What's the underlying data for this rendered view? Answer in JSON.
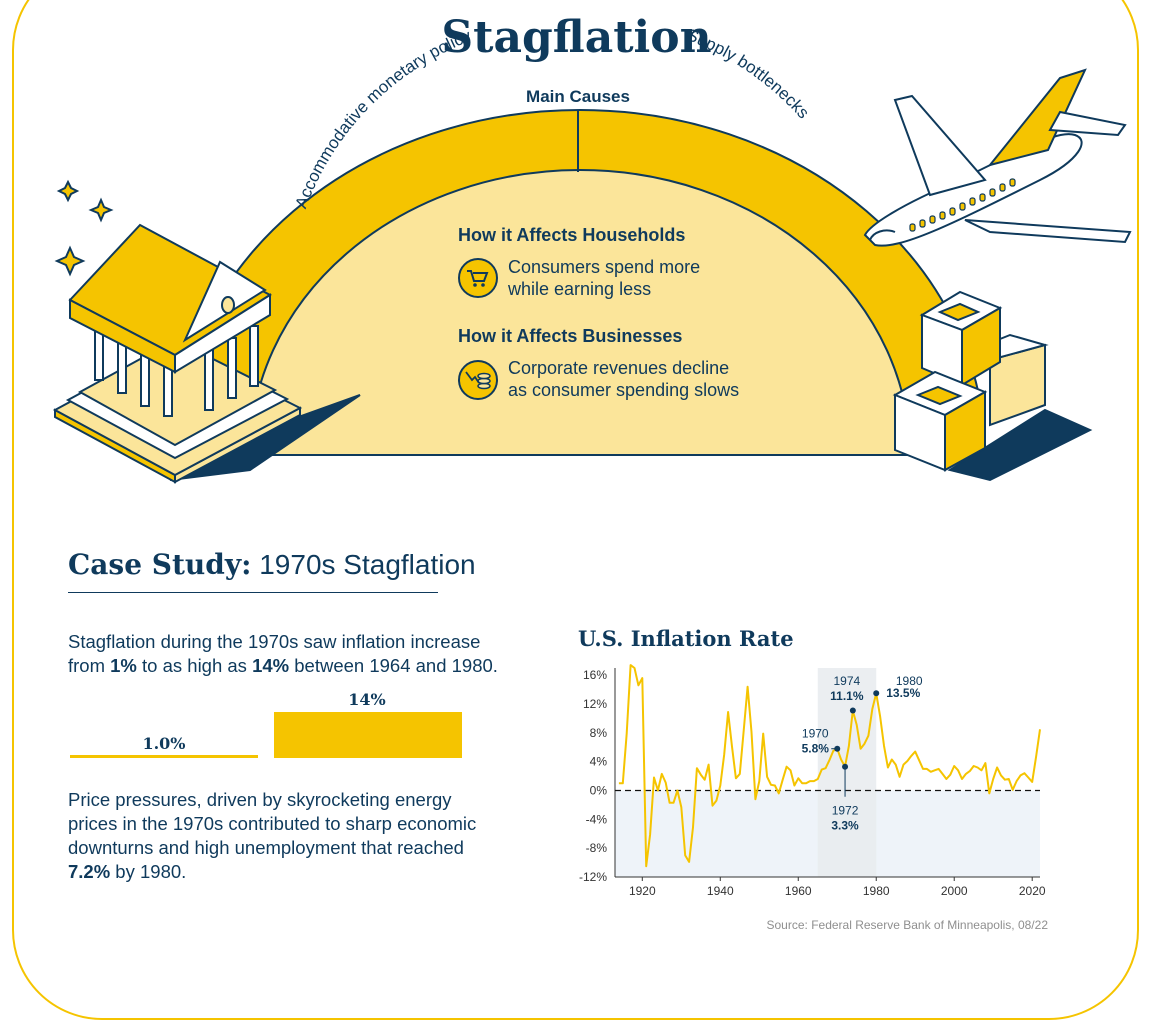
{
  "title": "Stagflation",
  "causes": {
    "heading": "Main Causes",
    "items": [
      "Accommodative monetary policy",
      "Supply bottlenecks"
    ]
  },
  "households": {
    "heading": "How it Affects Households",
    "text_line1": "Consumers spend more",
    "text_line2": "while earning less"
  },
  "businesses": {
    "heading": "How it Affects Businesses",
    "text_line1": "Corporate revenues decline",
    "text_line2": "as consumer spending slows"
  },
  "case_study": {
    "title_bold": "Case Study:",
    "title_rest": "1970s Stagflation",
    "para1": {
      "l1": "Stagflation during the 1970s saw inflation increase",
      "l2_a": "from ",
      "l2_b": "1%",
      "l2_c": " to as high as ",
      "l2_d": "14%",
      "l2_e": " between 1964 and 1980."
    },
    "para2": {
      "l1": "Price pressures, driven by skyrocketing energy",
      "l2": "prices in the 1970s contributed to sharp economic",
      "l3": "downturns and high unemployment that reached",
      "l4_b": "7.2%",
      "l4_c": " by 1980."
    }
  },
  "compare_bars": {
    "low_label": "1.0%",
    "low_value": 1.0,
    "high_label": "14%",
    "high_value": 14
  },
  "colors": {
    "navy": "#0f3a5c",
    "yellow": "#f5c400",
    "light_yellow": "#fbe59a"
  },
  "chart_data": {
    "type": "line",
    "title": "U.S. Inflation Rate",
    "source": "Source: Federal Reserve Bank of Minneapolis, 08/22",
    "xlabel": "",
    "ylabel": "",
    "xlim": [
      1913,
      2022
    ],
    "ylim": [
      -12,
      17
    ],
    "x_ticks": [
      1920,
      1940,
      1960,
      1980,
      2000,
      2020
    ],
    "y_ticks": [
      16,
      12,
      8,
      4,
      0,
      -4,
      -8,
      -12
    ],
    "y_tick_labels": [
      "16%",
      "12%",
      "8%",
      "4%",
      "0%",
      "-4%",
      "-8%",
      "-12%"
    ],
    "highlight_range": [
      1965,
      1980
    ],
    "series": [
      {
        "name": "Inflation",
        "x": [
          1914,
          1915,
          1916,
          1917,
          1918,
          1919,
          1920,
          1921,
          1922,
          1923,
          1924,
          1925,
          1926,
          1927,
          1928,
          1929,
          1930,
          1931,
          1932,
          1933,
          1934,
          1935,
          1936,
          1937,
          1938,
          1939,
          1940,
          1941,
          1942,
          1943,
          1944,
          1945,
          1946,
          1947,
          1948,
          1949,
          1950,
          1951,
          1952,
          1953,
          1954,
          1955,
          1956,
          1957,
          1958,
          1959,
          1960,
          1961,
          1962,
          1963,
          1964,
          1965,
          1966,
          1967,
          1968,
          1969,
          1970,
          1971,
          1972,
          1973,
          1974,
          1975,
          1976,
          1977,
          1978,
          1979,
          1980,
          1981,
          1982,
          1983,
          1984,
          1985,
          1986,
          1987,
          1988,
          1989,
          1990,
          1991,
          1992,
          1993,
          1994,
          1995,
          1996,
          1997,
          1998,
          1999,
          2000,
          2001,
          2002,
          2003,
          2004,
          2005,
          2006,
          2007,
          2008,
          2009,
          2010,
          2011,
          2012,
          2013,
          2014,
          2015,
          2016,
          2017,
          2018,
          2019,
          2020,
          2021,
          2022
        ],
        "values": [
          1.0,
          1.0,
          7.9,
          17.4,
          17.0,
          14.6,
          15.6,
          -10.5,
          -6.1,
          1.8,
          0.0,
          2.3,
          1.1,
          -1.7,
          -1.7,
          0.0,
          -2.3,
          -9.0,
          -9.9,
          -5.1,
          3.1,
          2.2,
          1.5,
          3.6,
          -2.1,
          -1.4,
          0.7,
          5.0,
          10.9,
          6.1,
          1.7,
          2.3,
          8.3,
          14.4,
          8.1,
          -1.2,
          1.3,
          7.9,
          1.9,
          0.8,
          0.7,
          -0.4,
          1.5,
          3.3,
          2.8,
          0.7,
          1.7,
          1.0,
          1.0,
          1.3,
          1.3,
          1.6,
          2.9,
          3.1,
          4.2,
          5.5,
          5.8,
          4.3,
          3.3,
          6.2,
          11.1,
          9.1,
          5.8,
          6.5,
          7.6,
          11.3,
          13.5,
          10.3,
          6.2,
          3.2,
          4.3,
          3.6,
          1.9,
          3.6,
          4.1,
          4.8,
          5.4,
          4.2,
          3.0,
          3.0,
          2.6,
          2.8,
          3.0,
          2.3,
          1.6,
          2.2,
          3.4,
          2.8,
          1.6,
          2.3,
          2.7,
          3.4,
          3.2,
          2.8,
          3.8,
          -0.4,
          1.6,
          3.2,
          2.1,
          1.5,
          1.6,
          0.1,
          1.3,
          2.1,
          2.4,
          1.8,
          1.2,
          4.7,
          8.5
        ]
      }
    ],
    "annotations": [
      {
        "year": "1970",
        "value": 5.8,
        "label": "5.8%"
      },
      {
        "year": "1972",
        "value": 3.3,
        "label": "3.3%"
      },
      {
        "year": "1974",
        "value": 11.1,
        "label": "11.1%"
      },
      {
        "year": "1980",
        "value": 13.5,
        "label": "13.5%"
      }
    ]
  }
}
